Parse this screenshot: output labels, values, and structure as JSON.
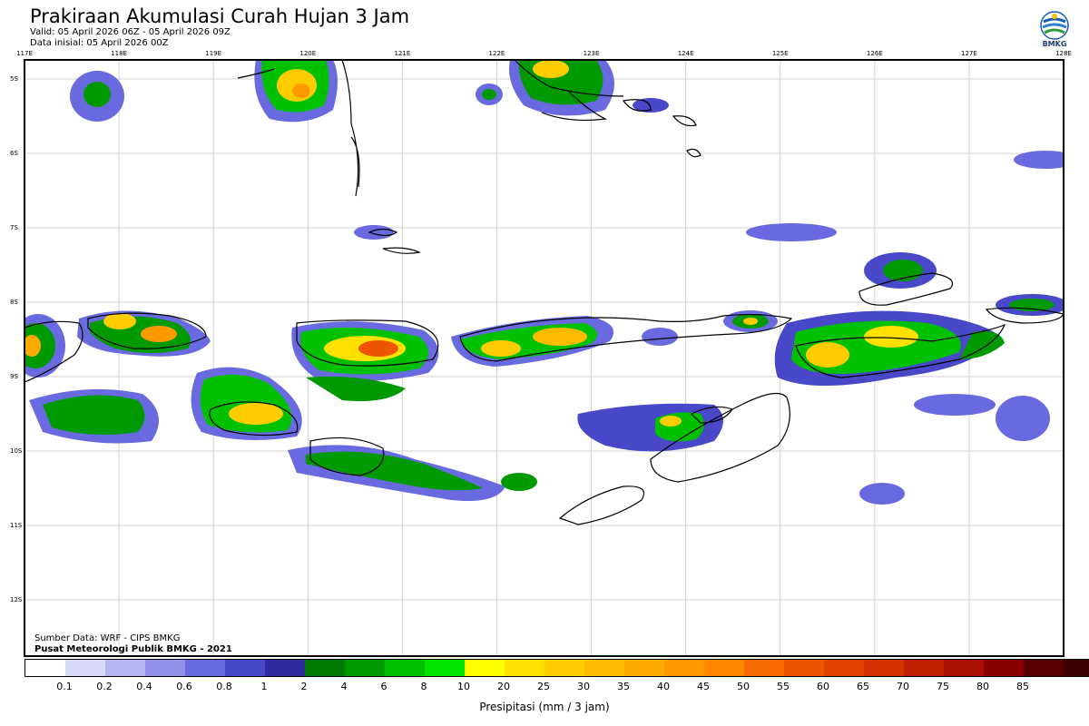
{
  "header": {
    "title": "Prakiraan Akumulasi Curah Hujan 3 Jam",
    "valid": "Valid: 05 April 2026 06Z - 05 April 2026 09Z",
    "init": "Data inisial: 05 April 2026 00Z"
  },
  "logo": {
    "name": "BMKG",
    "icon": "bmkg-logo-icon"
  },
  "map": {
    "lon_labels": [
      "117E",
      "118E",
      "119E",
      "120E",
      "121E",
      "122E",
      "123E",
      "124E",
      "125E",
      "126E",
      "127E",
      "128E"
    ],
    "lat_labels": [
      "5S",
      "6S",
      "7S",
      "8S",
      "9S",
      "10S",
      "11S",
      "12S"
    ]
  },
  "source": {
    "line1": "Sumber Data: WRF - CIPS BMKG",
    "line2": "Pusat Meteorologi Publik BMKG - 2021"
  },
  "colorbar": {
    "colors": [
      "#ffffff",
      "#d8d8f8",
      "#b4b4f0",
      "#9090e8",
      "#6a6ae0",
      "#4848c8",
      "#2c2ca0",
      "#007a00",
      "#009a00",
      "#00c000",
      "#00e400",
      "#ffff00",
      "#ffe000",
      "#ffcc00",
      "#ffbb00",
      "#ffaa00",
      "#ff9900",
      "#ff8800",
      "#f56a00",
      "#ee5500",
      "#e04400",
      "#d23200",
      "#c02000",
      "#aa1000",
      "#8a0000",
      "#5a0000",
      "#3a0000"
    ],
    "labels": [
      "0.1",
      "0.2",
      "0.4",
      "0.6",
      "0.8",
      "1",
      "2",
      "4",
      "6",
      "8",
      "10",
      "20",
      "25",
      "30",
      "35",
      "40",
      "45",
      "50",
      "55",
      "60",
      "65",
      "70",
      "75",
      "80",
      "85"
    ],
    "caption": "Presipitasi (mm / 3 jam)"
  }
}
